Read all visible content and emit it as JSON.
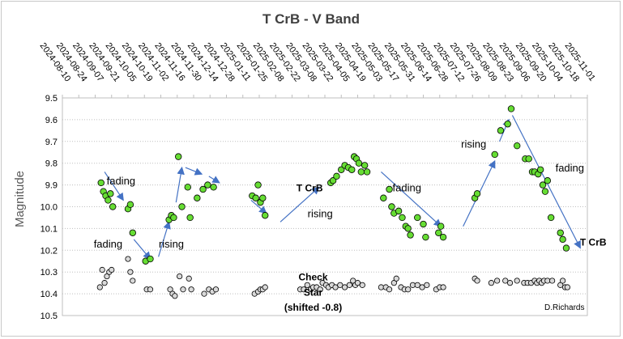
{
  "chart_data": {
    "type": "scatter",
    "title": "T CrB - V Band",
    "ylabel": "Magnitude",
    "xlabel": "",
    "x_tick_labels": [
      "2024-08-10",
      "2024-08-24",
      "2024-09-07",
      "2024-09-21",
      "2024-10-05",
      "2024-10-19",
      "2024-11-02",
      "2024-11-16",
      "2024-11-30",
      "2024-12-14",
      "2024-12-28",
      "2025-01-11",
      "2025-01-25",
      "2025-02-08",
      "2025-02-22",
      "2025-03-08",
      "2025-03-22",
      "2025-04-05",
      "2025-04-19",
      "2025-05-03",
      "2025-05-17",
      "2025-05-31",
      "2025-06-14",
      "2025-06-28",
      "2025-07-12",
      "2025-07-26",
      "2025-08-09",
      "2025-08-23",
      "2025-09-06",
      "2025-09-20",
      "2025-10-04",
      "2025-10-18",
      "2025-11-01"
    ],
    "xlim": [
      "2024-08-10",
      "2025-11-01"
    ],
    "ylim": [
      9.5,
      10.5
    ],
    "y_reversed": true,
    "y_ticks": [
      "9.5",
      "9.6",
      "9.7",
      "9.8",
      "9.9",
      "10.0",
      "10.1",
      "10.2",
      "10.3",
      "10.4",
      "10.5"
    ],
    "grid": "horizontal dotted",
    "series": [
      {
        "name": "T CrB",
        "color": "#66dd33",
        "points": [
          [
            "2024-09-12",
            9.89
          ],
          [
            "2024-09-14",
            9.93
          ],
          [
            "2024-09-16",
            9.95
          ],
          [
            "2024-09-18",
            9.97
          ],
          [
            "2024-09-20",
            9.94
          ],
          [
            "2024-09-22",
            10.0
          ],
          [
            "2024-10-05",
            10.01
          ],
          [
            "2024-10-07",
            9.99
          ],
          [
            "2024-10-09",
            10.12
          ],
          [
            "2024-10-20",
            10.25
          ],
          [
            "2024-10-24",
            10.24
          ],
          [
            "2024-11-09",
            10.06
          ],
          [
            "2024-11-11",
            10.04
          ],
          [
            "2024-11-13",
            10.05
          ],
          [
            "2024-11-17",
            9.77
          ],
          [
            "2024-11-20",
            10.0
          ],
          [
            "2024-11-25",
            9.91
          ],
          [
            "2024-11-27",
            10.05
          ],
          [
            "2024-12-03",
            9.96
          ],
          [
            "2024-12-08",
            9.92
          ],
          [
            "2024-12-12",
            9.9
          ],
          [
            "2024-12-17",
            9.91
          ],
          [
            "2025-01-19",
            9.95
          ],
          [
            "2025-01-22",
            9.96
          ],
          [
            "2025-01-24",
            9.9
          ],
          [
            "2025-01-26",
            9.98
          ],
          [
            "2025-01-28",
            9.96
          ],
          [
            "2025-01-30",
            10.04
          ],
          [
            "2025-03-27",
            9.89
          ],
          [
            "2025-03-29",
            9.88
          ],
          [
            "2025-04-01",
            9.86
          ],
          [
            "2025-04-05",
            9.83
          ],
          [
            "2025-04-08",
            9.81
          ],
          [
            "2025-04-11",
            9.82
          ],
          [
            "2025-04-14",
            9.83
          ],
          [
            "2025-04-16",
            9.77
          ],
          [
            "2025-04-18",
            9.78
          ],
          [
            "2025-04-20",
            9.8
          ],
          [
            "2025-04-22",
            9.84
          ],
          [
            "2025-04-25",
            9.81
          ],
          [
            "2025-04-27",
            9.84
          ],
          [
            "2025-05-11",
            9.96
          ],
          [
            "2025-05-16",
            9.92
          ],
          [
            "2025-05-18",
            10.0
          ],
          [
            "2025-05-20",
            10.03
          ],
          [
            "2025-05-24",
            10.02
          ],
          [
            "2025-05-27",
            10.05
          ],
          [
            "2025-05-30",
            10.09
          ],
          [
            "2025-06-01",
            10.1
          ],
          [
            "2025-06-03",
            10.13
          ],
          [
            "2025-06-09",
            10.05
          ],
          [
            "2025-06-14",
            10.08
          ],
          [
            "2025-06-16",
            10.14
          ],
          [
            "2025-06-27",
            10.12
          ],
          [
            "2025-06-29",
            10.09
          ],
          [
            "2025-07-01",
            10.14
          ],
          [
            "2025-07-28",
            9.96
          ],
          [
            "2025-07-30",
            9.94
          ],
          [
            "2025-08-14",
            9.76
          ],
          [
            "2025-08-19",
            9.65
          ],
          [
            "2025-08-25",
            9.62
          ],
          [
            "2025-08-28",
            9.55
          ],
          [
            "2025-09-02",
            9.72
          ],
          [
            "2025-09-09",
            9.78
          ],
          [
            "2025-09-12",
            9.78
          ],
          [
            "2025-09-15",
            9.84
          ],
          [
            "2025-09-17",
            9.84
          ],
          [
            "2025-09-20",
            9.85
          ],
          [
            "2025-09-22",
            9.83
          ],
          [
            "2025-09-24",
            9.9
          ],
          [
            "2025-09-26",
            9.93
          ],
          [
            "2025-09-28",
            9.88
          ],
          [
            "2025-10-01",
            10.05
          ],
          [
            "2025-10-09",
            10.12
          ],
          [
            "2025-10-11",
            10.15
          ],
          [
            "2025-10-14",
            10.19
          ]
        ]
      },
      {
        "name": "Check Star (shifted -0.8)",
        "color": "#d9d9d9",
        "points": [
          [
            "2024-09-11",
            10.37
          ],
          [
            "2024-09-13",
            10.29
          ],
          [
            "2024-09-15",
            10.35
          ],
          [
            "2024-09-17",
            10.32
          ],
          [
            "2024-09-19",
            10.3
          ],
          [
            "2024-09-21",
            10.29
          ],
          [
            "2024-10-05",
            10.24
          ],
          [
            "2024-10-07",
            10.3
          ],
          [
            "2024-10-09",
            10.34
          ],
          [
            "2024-10-21",
            10.38
          ],
          [
            "2024-10-24",
            10.38
          ],
          [
            "2024-11-10",
            10.38
          ],
          [
            "2024-11-12",
            10.4
          ],
          [
            "2024-11-14",
            10.41
          ],
          [
            "2024-11-18",
            10.32
          ],
          [
            "2024-11-21",
            10.38
          ],
          [
            "2024-11-26",
            10.33
          ],
          [
            "2024-11-28",
            10.38
          ],
          [
            "2024-12-09",
            10.4
          ],
          [
            "2024-12-13",
            10.38
          ],
          [
            "2024-12-16",
            10.39
          ],
          [
            "2024-12-19",
            10.38
          ],
          [
            "2025-01-21",
            10.4
          ],
          [
            "2025-01-24",
            10.39
          ],
          [
            "2025-01-26",
            10.38
          ],
          [
            "2025-01-28",
            10.38
          ],
          [
            "2025-01-30",
            10.37
          ],
          [
            "2025-03-01",
            10.38
          ],
          [
            "2025-03-04",
            10.38
          ],
          [
            "2025-03-07",
            10.36
          ],
          [
            "2025-03-10",
            10.38
          ],
          [
            "2025-03-12",
            10.37
          ],
          [
            "2025-03-15",
            10.37
          ],
          [
            "2025-03-18",
            10.38
          ],
          [
            "2025-03-20",
            10.35
          ],
          [
            "2025-03-23",
            10.36
          ],
          [
            "2025-03-25",
            10.37
          ],
          [
            "2025-03-28",
            10.36
          ],
          [
            "2025-03-31",
            10.37
          ],
          [
            "2025-04-04",
            10.36
          ],
          [
            "2025-04-08",
            10.37
          ],
          [
            "2025-04-12",
            10.36
          ],
          [
            "2025-04-15",
            10.34
          ],
          [
            "2025-04-17",
            10.36
          ],
          [
            "2025-04-19",
            10.35
          ],
          [
            "2025-04-23",
            10.36
          ],
          [
            "2025-05-09",
            10.37
          ],
          [
            "2025-05-13",
            10.37
          ],
          [
            "2025-05-16",
            10.38
          ],
          [
            "2025-05-20",
            10.35
          ],
          [
            "2025-05-22",
            10.33
          ],
          [
            "2025-05-26",
            10.37
          ],
          [
            "2025-05-29",
            10.38
          ],
          [
            "2025-06-01",
            10.38
          ],
          [
            "2025-06-05",
            10.36
          ],
          [
            "2025-06-09",
            10.36
          ],
          [
            "2025-06-13",
            10.37
          ],
          [
            "2025-06-17",
            10.36
          ],
          [
            "2025-06-25",
            10.38
          ],
          [
            "2025-06-28",
            10.37
          ],
          [
            "2025-07-01",
            10.37
          ],
          [
            "2025-07-28",
            10.33
          ],
          [
            "2025-07-30",
            10.34
          ],
          [
            "2025-08-11",
            10.35
          ],
          [
            "2025-08-16",
            10.34
          ],
          [
            "2025-08-23",
            10.34
          ],
          [
            "2025-08-27",
            10.35
          ],
          [
            "2025-09-02",
            10.34
          ],
          [
            "2025-09-08",
            10.35
          ],
          [
            "2025-09-11",
            10.35
          ],
          [
            "2025-09-14",
            10.35
          ],
          [
            "2025-09-17",
            10.34
          ],
          [
            "2025-09-19",
            10.35
          ],
          [
            "2025-09-21",
            10.34
          ],
          [
            "2025-09-23",
            10.35
          ],
          [
            "2025-09-25",
            10.34
          ],
          [
            "2025-09-28",
            10.34
          ],
          [
            "2025-10-02",
            10.34
          ],
          [
            "2025-10-09",
            10.36
          ],
          [
            "2025-10-11",
            10.34
          ],
          [
            "2025-10-13",
            10.37
          ],
          [
            "2025-10-15",
            10.37
          ]
        ]
      }
    ],
    "annotations": [
      {
        "text": "fading",
        "date": "2024-09-29",
        "mag": 9.88,
        "bold": false
      },
      {
        "text": "fading",
        "date": "2024-09-18",
        "mag": 10.17,
        "bold": false
      },
      {
        "text": "rising",
        "date": "2024-11-11",
        "mag": 10.17,
        "bold": false
      },
      {
        "text": "T CrB",
        "date": "2025-03-09",
        "mag": 9.91,
        "bold": true
      },
      {
        "text": "rising",
        "date": "2025-03-18",
        "mag": 10.03,
        "bold": false
      },
      {
        "text": "fading",
        "date": "2025-05-31",
        "mag": 9.91,
        "bold": false
      },
      {
        "text": "rising",
        "date": "2025-07-27",
        "mag": 9.71,
        "bold": false
      },
      {
        "text": "fading",
        "date": "2025-10-17",
        "mag": 9.82,
        "bold": false
      },
      {
        "text": "T CrB",
        "date": "2025-11-06",
        "mag": 10.16,
        "bold": true
      },
      {
        "text": "Check",
        "date": "2025-03-12",
        "mag": 10.32,
        "bold": true
      },
      {
        "text": "Star",
        "date": "2025-03-12",
        "mag": 10.39,
        "bold": true
      },
      {
        "text": "(shifted -0.8)",
        "date": "2025-03-12",
        "mag": 10.46,
        "bold": true
      }
    ],
    "arrows": [
      {
        "from": [
          "2024-09-15",
          9.84
        ],
        "to": [
          "2024-10-01",
          9.97
        ]
      },
      {
        "from": [
          "2024-10-10",
          10.15
        ],
        "to": [
          "2024-10-24",
          10.24
        ]
      },
      {
        "from": [
          "2024-10-31",
          10.23
        ],
        "to": [
          "2024-11-09",
          10.07
        ]
      },
      {
        "from": [
          "2024-11-15",
          9.98
        ],
        "to": [
          "2024-11-20",
          9.82
        ]
      },
      {
        "from": [
          "2024-11-23",
          9.82
        ],
        "to": [
          "2024-12-07",
          9.85
        ]
      },
      {
        "from": [
          "2024-12-13",
          9.86
        ],
        "to": [
          "2024-12-22",
          9.89
        ]
      },
      {
        "from": [
          "2025-01-18",
          9.97
        ],
        "to": [
          "2025-01-31",
          10.03
        ]
      },
      {
        "from": [
          "2025-02-12",
          10.07
        ],
        "to": [
          "2025-03-17",
          9.91
        ]
      },
      {
        "from": [
          "2025-05-09",
          9.84
        ],
        "to": [
          "2025-06-29",
          10.09
        ]
      },
      {
        "from": [
          "2025-07-18",
          10.09
        ],
        "to": [
          "2025-08-14",
          9.79
        ]
      },
      {
        "from": [
          "2025-08-18",
          9.7
        ],
        "to": [
          "2025-08-26",
          9.6
        ]
      },
      {
        "from": [
          "2025-08-29",
          9.58
        ],
        "to": [
          "2025-10-26",
          10.19
        ]
      }
    ],
    "credit": "D.Richards"
  }
}
